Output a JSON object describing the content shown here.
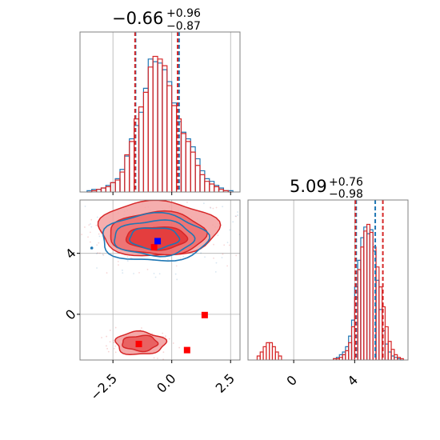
{
  "colors": {
    "blue": "#1f77b4",
    "red": "#d62728",
    "red_fill": "#f3a0a0",
    "red_fill_dark": "#e23535",
    "grid": "#b0b0b0",
    "frame": "#808080",
    "scatter_blue_marker": "#0000ff",
    "scatter_red_marker": "#ff0000"
  },
  "chart_data": [
    {
      "type": "histogram",
      "panel": "top-left",
      "title": {
        "value": "−0.66",
        "plus": "+0.96",
        "minus": "−0.87"
      },
      "xlim": [
        -3.9,
        2.9
      ],
      "grid": true,
      "quantile_lines": {
        "blue": [
          -1.54,
          0.31
        ],
        "red": [
          -1.56,
          0.25
        ]
      },
      "series": [
        {
          "color": "blue",
          "bin_centers": [
            -3.5,
            -3.3,
            -3.1,
            -2.9,
            -2.7,
            -2.5,
            -2.3,
            -2.1,
            -1.9,
            -1.7,
            -1.5,
            -1.3,
            -1.1,
            -0.9,
            -0.7,
            -0.5,
            -0.3,
            -0.1,
            0.1,
            0.3,
            0.5,
            0.7,
            0.9,
            1.1,
            1.3,
            1.5,
            1.7,
            1.9,
            2.1,
            2.3,
            2.5
          ],
          "counts": [
            1,
            2,
            2,
            3,
            5,
            7,
            10,
            17,
            27,
            40,
            50,
            60,
            78,
            100,
            98,
            97,
            92,
            83,
            67,
            53,
            45,
            40,
            34,
            25,
            16,
            10,
            8,
            5,
            3,
            1,
            1
          ]
        },
        {
          "color": "red",
          "bin_centers": [
            -3.5,
            -3.3,
            -3.1,
            -2.9,
            -2.7,
            -2.5,
            -2.3,
            -2.1,
            -1.9,
            -1.7,
            -1.5,
            -1.3,
            -1.1,
            -0.9,
            -0.7,
            -0.5,
            -0.3,
            -0.1,
            0.1,
            0.3,
            0.5,
            0.7,
            0.9,
            1.1,
            1.3,
            1.5,
            1.7,
            1.9,
            2.1,
            2.3,
            2.5
          ],
          "counts": [
            0,
            1,
            2,
            3,
            4,
            7,
            9,
            15,
            28,
            38,
            55,
            64,
            75,
            94,
            102,
            100,
            95,
            80,
            65,
            55,
            44,
            38,
            30,
            20,
            13,
            8,
            6,
            4,
            2,
            1,
            0
          ]
        }
      ]
    },
    {
      "type": "contour",
      "panel": "bottom-left",
      "xlim": [
        -3.9,
        2.9
      ],
      "ylim": [
        -3.0,
        7.5
      ],
      "xticks": [
        "−2.5",
        "0.0",
        "2.5"
      ],
      "xtick_values": [
        -2.5,
        0.0,
        2.5
      ],
      "yticks": [
        "0",
        "4"
      ],
      "ytick_values": [
        0,
        4
      ],
      "grid": true,
      "blue_contours": [
        {
          "cx": -0.75,
          "cy": 5.0,
          "rx": 2.25,
          "ry": 1.55
        },
        {
          "cx": -0.75,
          "cy": 5.0,
          "rx": 1.7,
          "ry": 1.15
        },
        {
          "cx": -0.75,
          "cy": 5.0,
          "rx": 1.05,
          "ry": 0.7
        }
      ],
      "red_contours": [
        {
          "cx": -0.6,
          "cy": 5.6,
          "rx": 2.55,
          "ry": 1.8
        },
        {
          "cx": -0.6,
          "cy": 5.3,
          "rx": 2.05,
          "ry": 1.4
        },
        {
          "cx": -0.65,
          "cy": 5.0,
          "rx": 1.3,
          "ry": 0.75
        }
      ],
      "red_lower_contours": [
        {
          "cx": -1.35,
          "cy": -1.9,
          "rx": 1.05,
          "ry": 0.75
        },
        {
          "cx": -1.35,
          "cy": -1.9,
          "rx": 0.75,
          "ry": 0.5
        }
      ],
      "blue_markers": [
        {
          "x": -0.6,
          "y": 4.8
        }
      ],
      "red_markers": [
        {
          "x": -0.75,
          "y": 4.4
        },
        {
          "x": 1.4,
          "y": -0.05
        },
        {
          "x": -1.4,
          "y": -1.95
        },
        {
          "x": 0.65,
          "y": -2.35
        }
      ]
    },
    {
      "type": "histogram",
      "panel": "bottom-right",
      "title": {
        "value": "5.09",
        "plus": "+0.76",
        "minus": "−0.98"
      },
      "xlim": [
        -3.0,
        7.5
      ],
      "xticks": [
        "0",
        "4"
      ],
      "xtick_values": [
        0,
        4
      ],
      "grid": true,
      "quantile_lines": {
        "blue": [
          4.1,
          5.35
        ],
        "red": [
          4.05,
          5.85
        ]
      },
      "series": [
        {
          "color": "blue",
          "bin_centers": [
            2.7,
            2.9,
            3.1,
            3.3,
            3.5,
            3.7,
            3.9,
            4.1,
            4.3,
            4.5,
            4.7,
            4.9,
            5.1,
            5.3,
            5.5,
            5.7,
            5.9,
            6.1,
            6.3,
            6.5,
            6.7,
            6.9,
            7.1
          ],
          "counts": [
            1,
            2,
            4,
            6,
            10,
            18,
            30,
            55,
            75,
            92,
            100,
            95,
            98,
            82,
            60,
            38,
            22,
            12,
            6,
            3,
            2,
            1,
            0
          ]
        },
        {
          "color": "red",
          "bin_centers": [
            -2.3,
            -2.1,
            -1.9,
            -1.7,
            -1.5,
            -1.3,
            -1.1,
            -0.9,
            2.7,
            2.9,
            3.1,
            3.3,
            3.5,
            3.7,
            3.9,
            4.1,
            4.3,
            4.5,
            4.7,
            4.9,
            5.1,
            5.3,
            5.5,
            5.7,
            5.9,
            6.1,
            6.3,
            6.5,
            6.7,
            6.9,
            7.1
          ],
          "counts": [
            3,
            6,
            10,
            13,
            13,
            10,
            6,
            3,
            1,
            1,
            2,
            4,
            7,
            13,
            25,
            47,
            68,
            85,
            97,
            102,
            96,
            85,
            70,
            55,
            40,
            25,
            14,
            8,
            4,
            2,
            1
          ]
        }
      ]
    }
  ]
}
